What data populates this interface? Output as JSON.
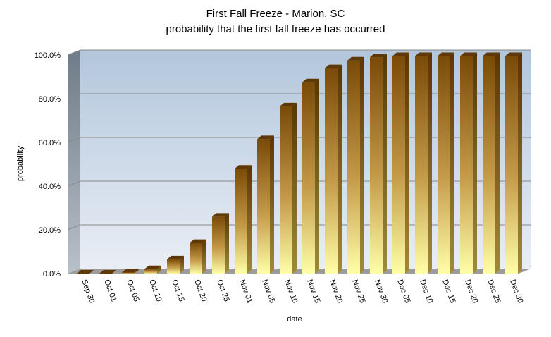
{
  "chart_data": {
    "type": "bar",
    "title": "First Fall Freeze - Marion, SC",
    "subtitle": "probability that the first fall freeze has occurred",
    "xlabel": "date",
    "ylabel": "probability",
    "ylim": [
      0,
      100
    ],
    "yticks": [
      "0.0%",
      "20.0%",
      "40.0%",
      "60.0%",
      "80.0%",
      "100.0%"
    ],
    "categories": [
      "Sep 30",
      "Oct 01",
      "Oct 05",
      "Oct 10",
      "Oct 15",
      "Oct 20",
      "Oct 25",
      "Nov 01",
      "Nov 05",
      "Nov 10",
      "Nov 15",
      "Nov 20",
      "Nov 25",
      "Nov 30",
      "Dec 05",
      "Dec 10",
      "Dec 15",
      "Dec 20",
      "Dec 25",
      "Dec 30"
    ],
    "values": [
      0,
      0,
      0.5,
      2,
      6.5,
      14,
      26,
      48,
      61.5,
      76.5,
      87.5,
      94,
      97.5,
      99,
      99.5,
      99.5,
      99.5,
      99.5,
      99.5,
      99.5
    ],
    "grid": true,
    "legend": "none",
    "colors": {
      "bar_top": "#7a4a08",
      "bar_bottom": "#ffffa8",
      "plot_bg_top": "#b2c6dc",
      "plot_bg_bottom": "#e9eef5",
      "side_wall": "#8c97a3",
      "floor": "#9c9c9c"
    }
  }
}
